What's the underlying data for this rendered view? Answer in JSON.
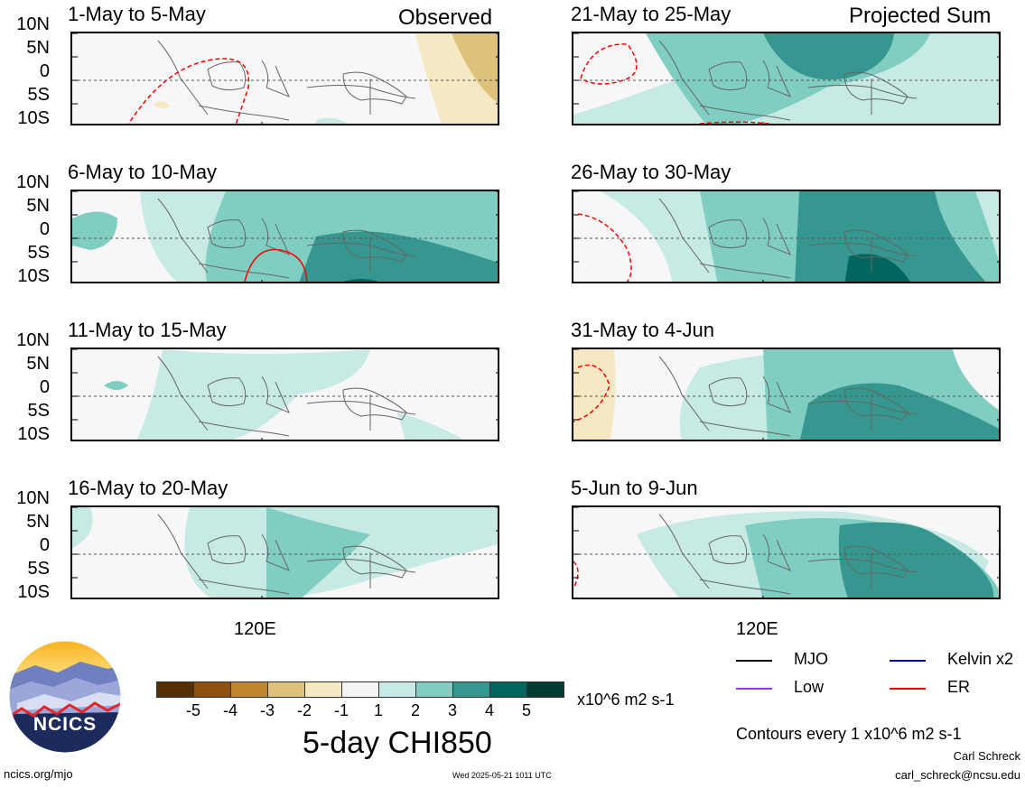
{
  "header": {
    "observed_label": "Observed",
    "projected_label": "Projected Sum"
  },
  "lat_labels": [
    "10N",
    "5N",
    "0",
    "5S",
    "10S"
  ],
  "lon_label": "120E",
  "panels": [
    {
      "title": "1-May to 5-May",
      "group": "observed"
    },
    {
      "title": "6-May to 10-May",
      "group": "observed"
    },
    {
      "title": "11-May to 15-May",
      "group": "observed"
    },
    {
      "title": "16-May to 20-May",
      "group": "observed"
    },
    {
      "title": "21-May to 25-May",
      "group": "projected"
    },
    {
      "title": "26-May to 30-May",
      "group": "projected"
    },
    {
      "title": "31-May to 4-Jun",
      "group": "projected"
    },
    {
      "title": "5-Jun to 9-Jun",
      "group": "projected"
    }
  ],
  "colorbar": {
    "title": "5-day CHI850",
    "units": "x10^6 m2 s-1",
    "tick_labels": [
      "-5",
      "-4",
      "-3",
      "-2",
      "-1",
      "1",
      "2",
      "3",
      "4",
      "5"
    ],
    "colors": [
      "#553005",
      "#8e5210",
      "#c0842e",
      "#dec17b",
      "#f6e8c3",
      "#f5f5f5",
      "#c7eae5",
      "#80cdc1",
      "#35978f",
      "#01665e",
      "#003c30"
    ]
  },
  "legend": {
    "items": [
      {
        "label": "MJO",
        "color": "#000000"
      },
      {
        "label": "Kelvin x2",
        "color": "#0000cc"
      },
      {
        "label": "Low",
        "color": "#9933ff"
      },
      {
        "label": "ER",
        "color": "#ff0000"
      }
    ],
    "contour_note": "Contours every 1 x10^6 m2 s-1"
  },
  "footer": {
    "logo_text": "NCICS",
    "url": "ncics.org/mjo",
    "timestamp": "Wed 2025-05-21 1011 UTC",
    "author": "Carl Schreck",
    "email": "carl_schreck@ncsu.edu"
  },
  "chart_data": {
    "type": "heatmap",
    "variable": "5-day CHI850",
    "units": "x10^6 m2 s-1",
    "color_levels": [
      -5,
      -4,
      -3,
      -2,
      -1,
      1,
      2,
      3,
      4,
      5
    ],
    "lat_range": [
      "10S",
      "10N"
    ],
    "lon_tick": "120E",
    "panels": [
      "1-May to 5-May",
      "6-May to 10-May",
      "11-May to 15-May",
      "16-May to 20-May",
      "21-May to 25-May",
      "26-May to 30-May",
      "31-May to 4-Jun",
      "5-Jun to 9-Jun"
    ]
  }
}
